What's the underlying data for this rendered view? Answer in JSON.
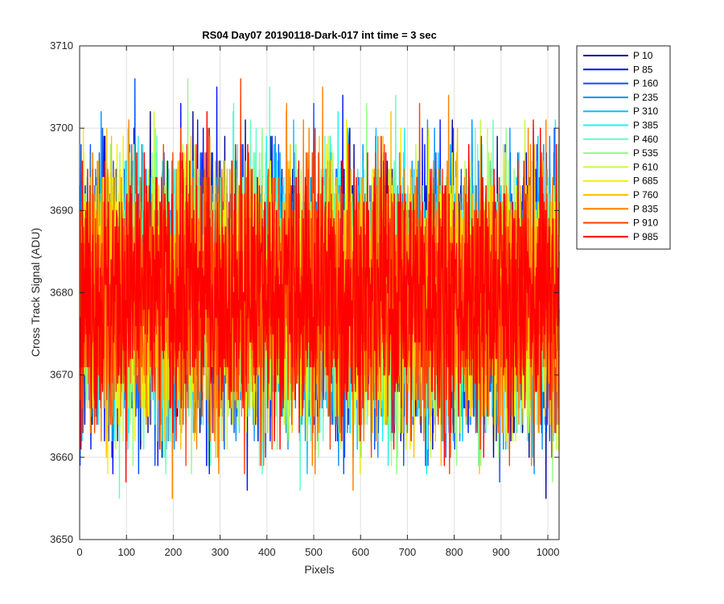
{
  "chart_data": {
    "type": "line",
    "title": "RS04 Day07 20190118-Dark-017 int time = 3 sec",
    "xlabel": "Pixels",
    "ylabel": "Cross Track Signal (ADU)",
    "xlim": [
      0,
      1024
    ],
    "ylim": [
      3650,
      3710
    ],
    "xticks": [
      0,
      100,
      200,
      300,
      400,
      500,
      600,
      700,
      800,
      900,
      1000
    ],
    "yticks": [
      3650,
      3660,
      3670,
      3680,
      3690,
      3700,
      3710
    ],
    "grid": true,
    "legend_position": "outside-top-right",
    "n_points": 1024,
    "approx_mean": 3680,
    "approx_noise_range": [
      3651,
      3707
    ],
    "series": [
      {
        "name": "P 10",
        "color": "#00008f"
      },
      {
        "name": "P 85",
        "color": "#0010ff"
      },
      {
        "name": "P 160",
        "color": "#0050ff"
      },
      {
        "name": "P 235",
        "color": "#0090ff"
      },
      {
        "name": "P 310",
        "color": "#00c0ff"
      },
      {
        "name": "P 385",
        "color": "#20f0f0"
      },
      {
        "name": "P 460",
        "color": "#60ffc0"
      },
      {
        "name": "P 535",
        "color": "#90ff80"
      },
      {
        "name": "P 610",
        "color": "#c0ff40"
      },
      {
        "name": "P 685",
        "color": "#f0f000"
      },
      {
        "name": "P 760",
        "color": "#ffc000"
      },
      {
        "name": "P 835",
        "color": "#ff8000"
      },
      {
        "name": "P 910",
        "color": "#ff4000"
      },
      {
        "name": "P 985",
        "color": "#ff0000"
      }
    ]
  }
}
